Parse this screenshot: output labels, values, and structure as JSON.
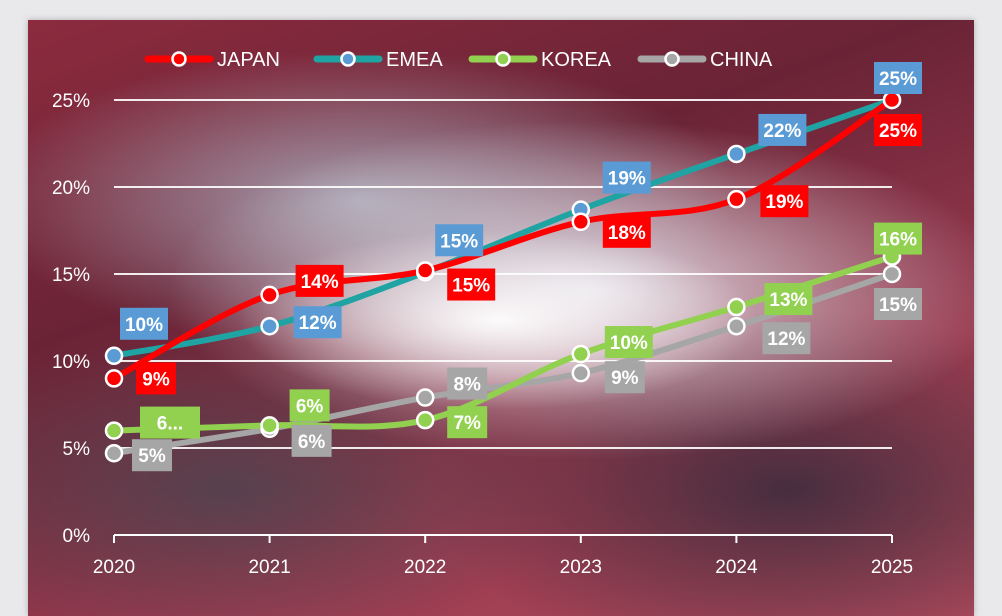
{
  "chart_data": {
    "type": "line",
    "categories": [
      "2020",
      "2021",
      "2022",
      "2023",
      "2024",
      "2025"
    ],
    "y_ticks": [
      "0%",
      "5%",
      "10%",
      "15%",
      "20%",
      "25%"
    ],
    "ylim": [
      0,
      25
    ],
    "grid": true,
    "legend_position": "top",
    "series": [
      {
        "name": "JAPAN",
        "color": "#ff0000",
        "marker_fill": "#ff0000",
        "values": [
          9,
          13.8,
          15.2,
          18,
          19.3,
          25
        ],
        "labels": [
          "9%",
          "14%",
          "15%",
          "18%",
          "19%",
          "25%"
        ]
      },
      {
        "name": "EMEA",
        "color": "#1fa3a3",
        "marker_fill": "#5b9bd5",
        "values": [
          10.3,
          12,
          15.1,
          18.7,
          21.9,
          25
        ],
        "labels": [
          "10%",
          "12%",
          "15%",
          "19%",
          "22%",
          "25%"
        ]
      },
      {
        "name": "KOREA",
        "color": "#92d050",
        "marker_fill": "#92d050",
        "values": [
          6,
          6.3,
          6.6,
          10.4,
          13.1,
          16
        ],
        "labels": [
          "6...",
          "6%",
          "7%",
          "10%",
          "13%",
          "16%"
        ]
      },
      {
        "name": "CHINA",
        "color": "#a6a6a6",
        "marker_fill": "#a6a6a6",
        "values": [
          4.7,
          6.1,
          7.9,
          9.3,
          12,
          15
        ],
        "labels": [
          "5%",
          "6%",
          "8%",
          "9%",
          "12%",
          "15%"
        ]
      }
    ]
  }
}
